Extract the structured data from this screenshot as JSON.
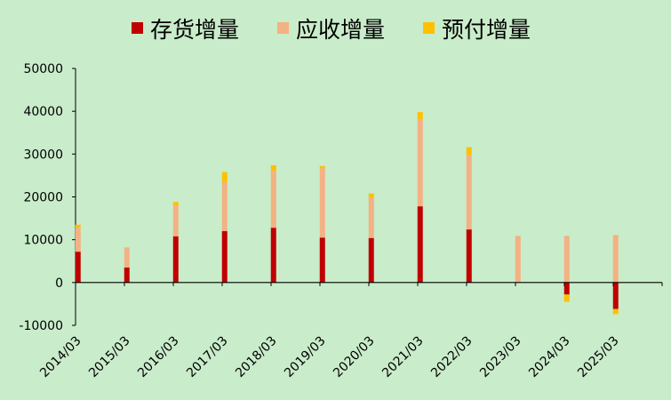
{
  "chart_data": {
    "type": "bar",
    "stacked": true,
    "categories": [
      "2014/03",
      "2015/03",
      "2016/03",
      "2017/03",
      "2018/03",
      "2019/03",
      "2020/03",
      "2021/03",
      "2022/03",
      "2023/03",
      "2024/03",
      "2025/03"
    ],
    "series": [
      {
        "name": "存货增量",
        "color": "#c00000",
        "values": [
          7200,
          3500,
          10800,
          12000,
          12800,
          10500,
          10400,
          17800,
          12400,
          0,
          -2800,
          -6200
        ]
      },
      {
        "name": "应收增量",
        "color": "#f4b183",
        "values": [
          5600,
          4700,
          7200,
          11400,
          13300,
          16200,
          9400,
          20200,
          17400,
          10900,
          10900,
          11100
        ]
      },
      {
        "name": "预付增量",
        "color": "#ffc000",
        "values": [
          700,
          0,
          800,
          2400,
          1300,
          500,
          1000,
          1800,
          1800,
          0,
          -1700,
          -1200
        ]
      }
    ],
    "ylim": [
      -10000,
      50000
    ],
    "yticks": [
      "-10000",
      "0",
      "10000",
      "20000",
      "30000",
      "40000",
      "50000"
    ],
    "legend": "top",
    "grid": false
  }
}
